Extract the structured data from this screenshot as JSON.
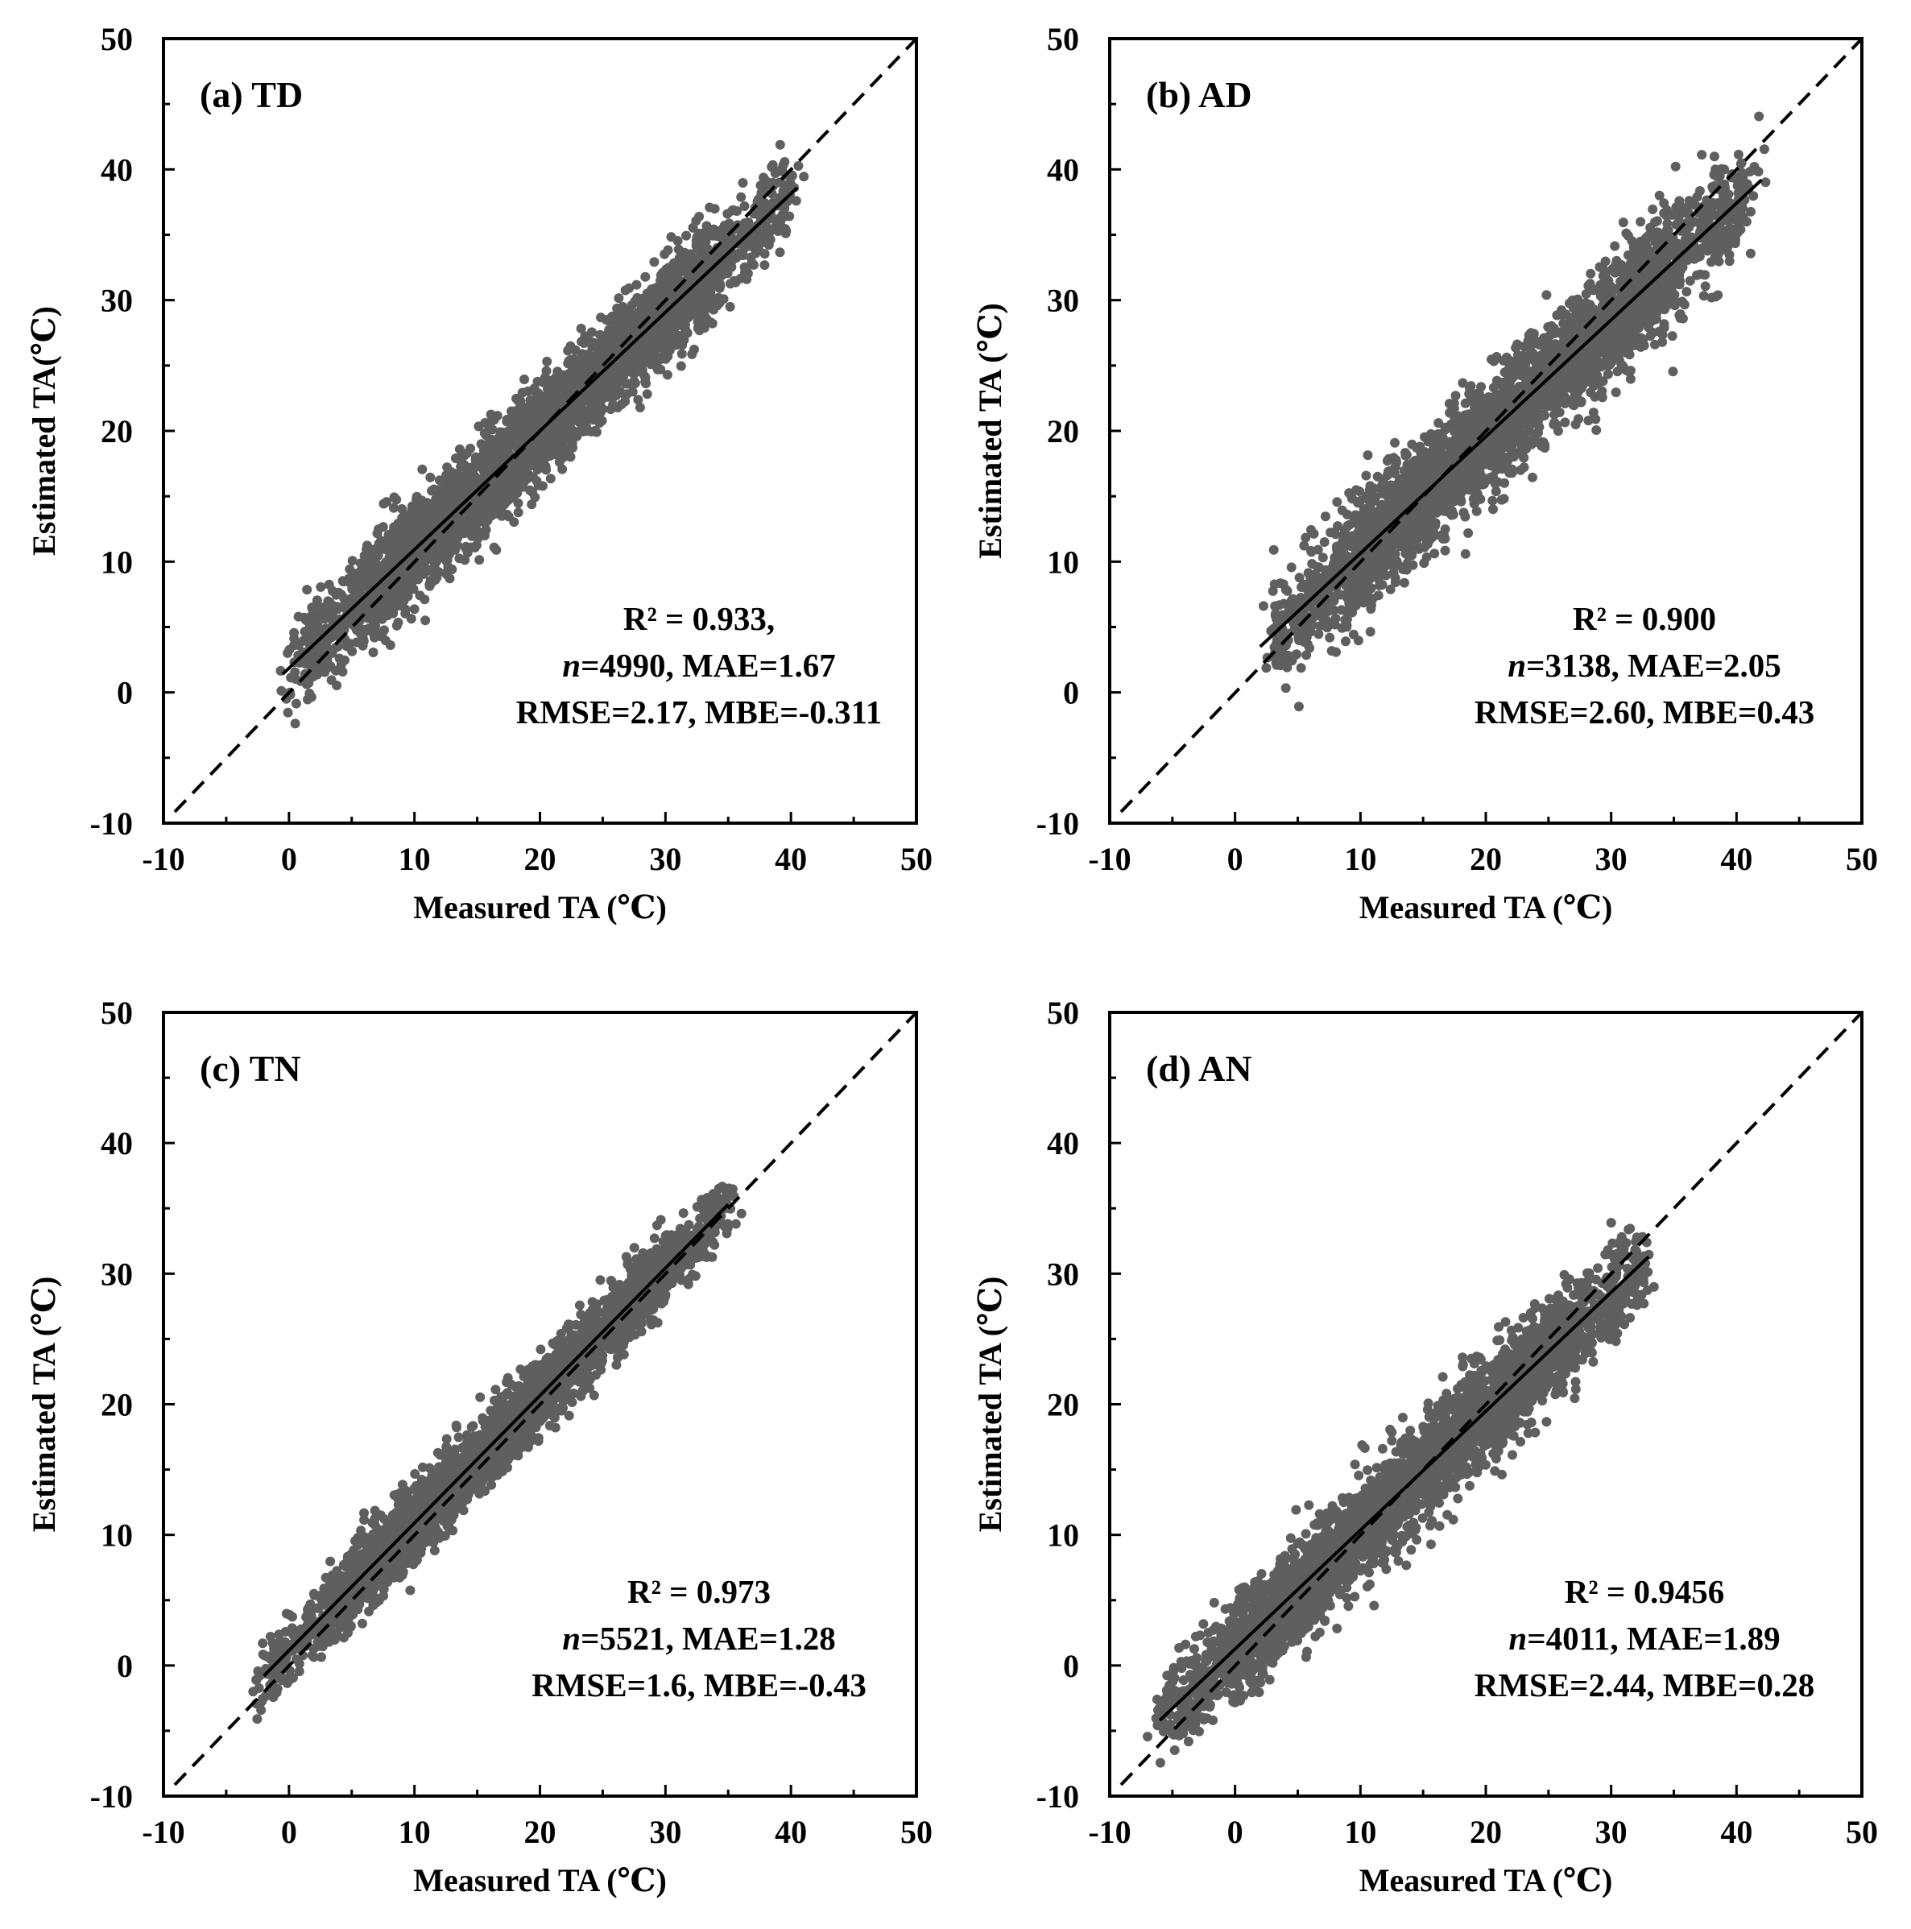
{
  "chart_data": [
    {
      "type": "scatter",
      "panel_label": "(a) TD",
      "xlabel": "Measured TA (℃)",
      "ylabel": "Estimated TA(℃)",
      "xlim": [
        -10,
        50
      ],
      "ylim": [
        -10,
        50
      ],
      "xticks": [
        "-10",
        "0",
        "10",
        "20",
        "30",
        "40",
        "50"
      ],
      "yticks": [
        "-10",
        "0",
        "10",
        "20",
        "30",
        "40",
        "50"
      ],
      "stats": [
        "R² = 0.933,",
        "n=4990, MAE=1.67",
        "RMSE=2.17, MBE=-0.311"
      ],
      "n": 4990,
      "r2": 0.933,
      "points_color": "#5f5f5f",
      "x_range": [
        0,
        40
      ],
      "cluster_spread": 2.2,
      "fit_line": {
        "x": [
          -0.5,
          40.5
        ],
        "y": [
          1.4,
          38.6
        ]
      },
      "identity_line": {
        "x": [
          -10,
          50
        ],
        "y": [
          -10,
          50
        ]
      }
    },
    {
      "type": "scatter",
      "panel_label": "(b) AD",
      "xlabel": "Measured TA (℃)",
      "ylabel": "Estimated TA (℃)",
      "xlim": [
        -10,
        50
      ],
      "ylim": [
        -10,
        50
      ],
      "xticks": [
        "-10",
        "0",
        "10",
        "20",
        "30",
        "40",
        "50"
      ],
      "yticks": [
        "-10",
        "0",
        "10",
        "20",
        "30",
        "40",
        "50"
      ],
      "stats": [
        "R² = 0.900",
        "n=3138, MAE=2.05",
        "RMSE=2.60, MBE=0.43"
      ],
      "n": 3138,
      "r2": 0.9,
      "points_color": "#5f5f5f",
      "x_range": [
        3,
        41
      ],
      "cluster_spread": 2.6,
      "fit_line": {
        "x": [
          2,
          42
        ],
        "y": [
          3.5,
          39.2
        ]
      },
      "identity_line": {
        "x": [
          -10,
          50
        ],
        "y": [
          -10,
          50
        ]
      }
    },
    {
      "type": "scatter",
      "panel_label": "(c) TN",
      "xlabel": "Measured TA (℃)",
      "ylabel": "Estimated TA (℃)",
      "xlim": [
        -10,
        50
      ],
      "ylim": [
        -10,
        50
      ],
      "xticks": [
        "-10",
        "0",
        "10",
        "20",
        "30",
        "40",
        "50"
      ],
      "yticks": [
        "-10",
        "0",
        "10",
        "20",
        "30",
        "40",
        "50"
      ],
      "stats": [
        "R² = 0.973",
        "n=5521, MAE=1.28",
        "RMSE=1.6,  MBE=-0.43"
      ],
      "n": 5521,
      "r2": 0.973,
      "points_color": "#5f5f5f",
      "x_range": [
        -2,
        35
      ],
      "cluster_spread": 1.6,
      "fit_line": {
        "x": [
          -2,
          35
        ],
        "y": [
          -0.8,
          35.3
        ]
      },
      "identity_line": {
        "x": [
          -10,
          50
        ],
        "y": [
          -10,
          50
        ]
      }
    },
    {
      "type": "scatter",
      "panel_label": "(d) AN",
      "xlabel": "Measured TA (℃)",
      "ylabel": "Estimated TA (℃)",
      "xlim": [
        -10,
        50
      ],
      "ylim": [
        -10,
        50
      ],
      "xticks": [
        "-10",
        "0",
        "10",
        "20",
        "30",
        "40",
        "50"
      ],
      "yticks": [
        "-10",
        "0",
        "10",
        "20",
        "30",
        "40",
        "50"
      ],
      "stats": [
        "R² = 0.9456",
        "n=4011, MAE=1.89",
        "RMSE=2.44, MBE=0.28"
      ],
      "n": 4011,
      "r2": 0.9456,
      "points_color": "#5f5f5f",
      "x_range": [
        -6,
        33
      ],
      "cluster_spread": 2.2,
      "fit_line": {
        "x": [
          -6,
          33
        ],
        "y": [
          -4.2,
          31.3
        ]
      },
      "identity_line": {
        "x": [
          -10,
          50
        ],
        "y": [
          -10,
          50
        ]
      }
    }
  ]
}
